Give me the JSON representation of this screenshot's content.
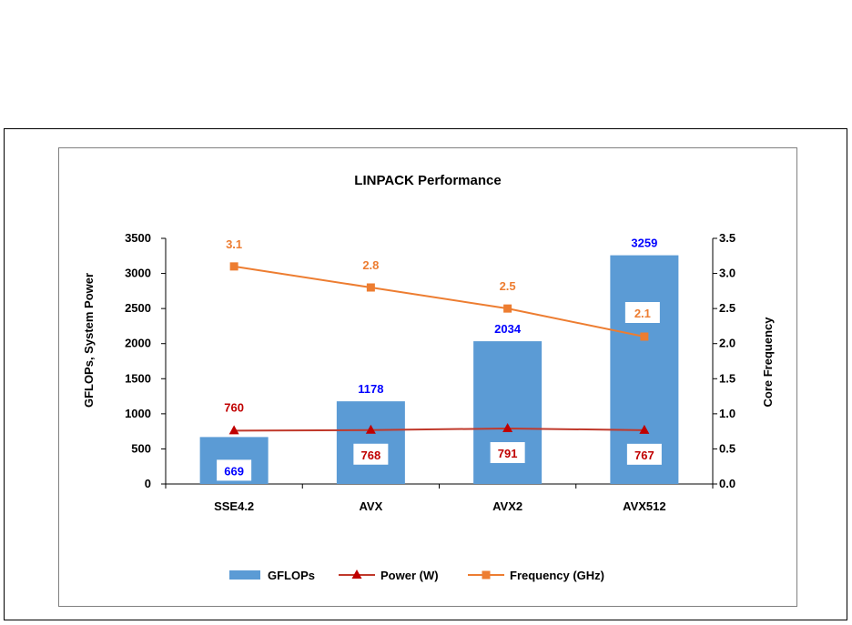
{
  "chart_data": {
    "type": "bar",
    "title": "LINPACK Performance",
    "categories": [
      "SSE4.2",
      "AVX",
      "AVX2",
      "AVX512"
    ],
    "ylabel": "GFLOPs, System Power",
    "y2label": "Core Frequency",
    "ylim": [
      0,
      3500
    ],
    "y2lim": [
      0.0,
      3.5
    ],
    "yticks": [
      "0",
      "500",
      "1000",
      "1500",
      "2000",
      "2500",
      "3000",
      "3500"
    ],
    "y2ticks": [
      "0.0",
      "0.5",
      "1.0",
      "1.5",
      "2.0",
      "2.5",
      "3.0",
      "3.5"
    ],
    "grid": false,
    "legend_position": "bottom",
    "series": [
      {
        "name": "GFLOPs",
        "kind": "bar",
        "axis": "left",
        "color": "#5B9BD5",
        "values": [
          669,
          1178,
          2034,
          3259
        ],
        "labels": [
          "669",
          "1178",
          "2034",
          "3259"
        ],
        "label_color": "#0000FF"
      },
      {
        "name": "Power (W)",
        "kind": "line",
        "marker": "triangle",
        "axis": "left",
        "color": "#C0392B",
        "values": [
          760,
          768,
          791,
          767
        ],
        "labels": [
          "760",
          "768",
          "791",
          "767"
        ],
        "label_color": "#C00000"
      },
      {
        "name": "Frequency (GHz)",
        "kind": "line",
        "marker": "square",
        "axis": "right",
        "color": "#ED7D31",
        "values": [
          3.1,
          2.8,
          2.5,
          2.1
        ],
        "labels": [
          "3.1",
          "2.8",
          "2.5",
          "2.1"
        ],
        "label_color": "#ED7D31"
      }
    ]
  }
}
